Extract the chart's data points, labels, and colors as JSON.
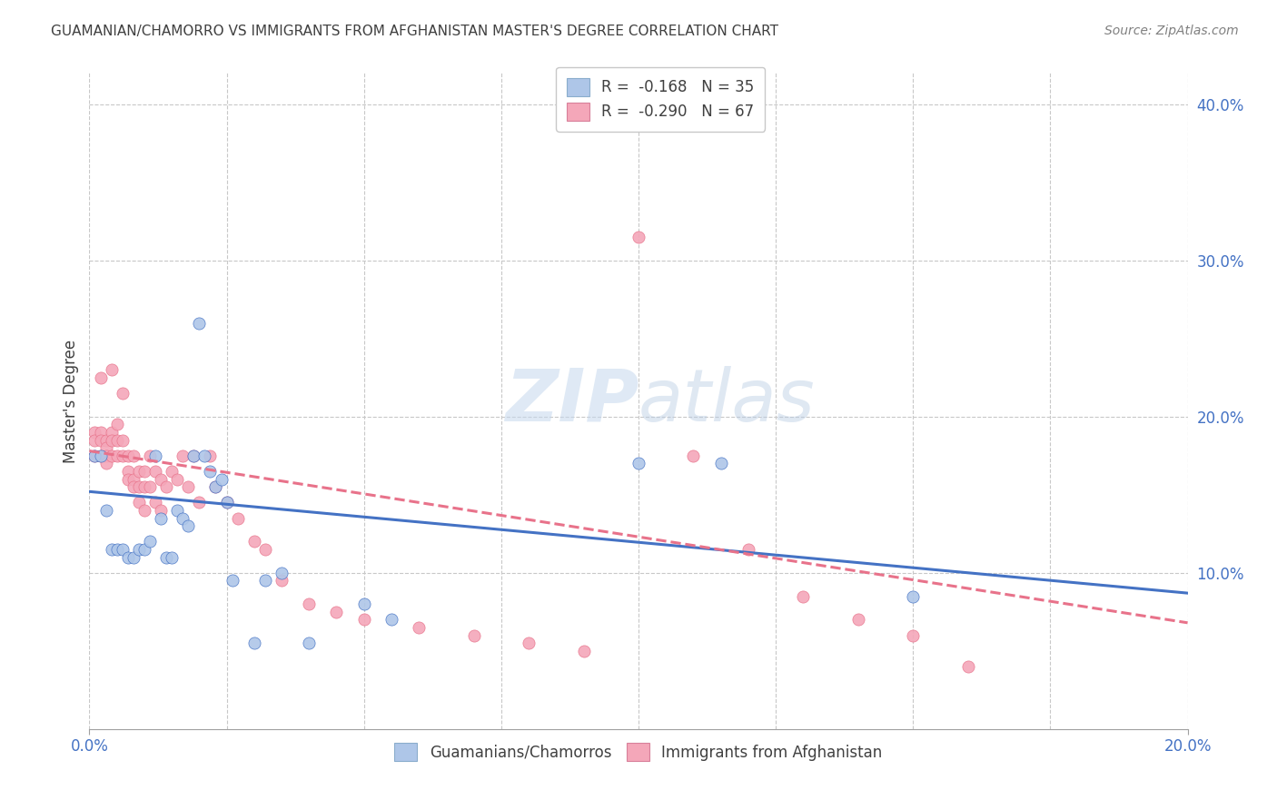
{
  "title": "GUAMANIAN/CHAMORRO VS IMMIGRANTS FROM AFGHANISTAN MASTER'S DEGREE CORRELATION CHART",
  "source": "Source: ZipAtlas.com",
  "ylabel": "Master's Degree",
  "right_yticks": [
    "40.0%",
    "30.0%",
    "20.0%",
    "10.0%"
  ],
  "right_ytick_vals": [
    0.4,
    0.3,
    0.2,
    0.1
  ],
  "legend_blue_label": "R =  -0.168   N = 35",
  "legend_pink_label": "R =  -0.290   N = 67",
  "legend_group1": "Guamanians/Chamorros",
  "legend_group2": "Immigrants from Afghanistan",
  "blue_color": "#aec6e8",
  "pink_color": "#f4a7b9",
  "blue_line_color": "#4472c4",
  "pink_line_color": "#e8728a",
  "title_color": "#404040",
  "source_color": "#808080",
  "axis_label_color": "#4472c4",
  "background_color": "#ffffff",
  "grid_color": "#c8c8c8",
  "blue_points_x": [
    0.001,
    0.002,
    0.003,
    0.004,
    0.005,
    0.006,
    0.007,
    0.008,
    0.009,
    0.01,
    0.011,
    0.012,
    0.013,
    0.014,
    0.015,
    0.016,
    0.017,
    0.018,
    0.019,
    0.02,
    0.021,
    0.022,
    0.023,
    0.024,
    0.025,
    0.026,
    0.03,
    0.032,
    0.035,
    0.04,
    0.05,
    0.055,
    0.1,
    0.115,
    0.15
  ],
  "blue_points_y": [
    0.175,
    0.175,
    0.14,
    0.115,
    0.115,
    0.115,
    0.11,
    0.11,
    0.115,
    0.115,
    0.12,
    0.175,
    0.135,
    0.11,
    0.11,
    0.14,
    0.135,
    0.13,
    0.175,
    0.26,
    0.175,
    0.165,
    0.155,
    0.16,
    0.145,
    0.095,
    0.055,
    0.095,
    0.1,
    0.055,
    0.08,
    0.07,
    0.17,
    0.17,
    0.085
  ],
  "pink_points_x": [
    0.001,
    0.001,
    0.001,
    0.002,
    0.002,
    0.002,
    0.002,
    0.003,
    0.003,
    0.003,
    0.003,
    0.004,
    0.004,
    0.004,
    0.004,
    0.005,
    0.005,
    0.005,
    0.006,
    0.006,
    0.006,
    0.007,
    0.007,
    0.007,
    0.008,
    0.008,
    0.008,
    0.009,
    0.009,
    0.009,
    0.01,
    0.01,
    0.01,
    0.011,
    0.011,
    0.012,
    0.012,
    0.013,
    0.013,
    0.014,
    0.015,
    0.016,
    0.017,
    0.018,
    0.019,
    0.02,
    0.022,
    0.023,
    0.025,
    0.027,
    0.03,
    0.032,
    0.035,
    0.04,
    0.045,
    0.05,
    0.06,
    0.07,
    0.08,
    0.09,
    0.1,
    0.11,
    0.12,
    0.13,
    0.14,
    0.15,
    0.16
  ],
  "pink_points_y": [
    0.19,
    0.185,
    0.175,
    0.225,
    0.19,
    0.185,
    0.175,
    0.185,
    0.18,
    0.175,
    0.17,
    0.23,
    0.19,
    0.185,
    0.175,
    0.195,
    0.185,
    0.175,
    0.215,
    0.185,
    0.175,
    0.175,
    0.165,
    0.16,
    0.175,
    0.16,
    0.155,
    0.165,
    0.155,
    0.145,
    0.165,
    0.155,
    0.14,
    0.175,
    0.155,
    0.165,
    0.145,
    0.16,
    0.14,
    0.155,
    0.165,
    0.16,
    0.175,
    0.155,
    0.175,
    0.145,
    0.175,
    0.155,
    0.145,
    0.135,
    0.12,
    0.115,
    0.095,
    0.08,
    0.075,
    0.07,
    0.065,
    0.06,
    0.055,
    0.05,
    0.315,
    0.175,
    0.115,
    0.085,
    0.07,
    0.06,
    0.04
  ],
  "blue_line_x": [
    0.0,
    0.2
  ],
  "blue_line_y_start": 0.152,
  "blue_line_y_end": 0.087,
  "pink_line_x": [
    0.0,
    0.2
  ],
  "pink_line_y_start": 0.178,
  "pink_line_y_end": 0.068,
  "xlim": [
    0.0,
    0.2
  ],
  "ylim": [
    0.0,
    0.42
  ],
  "xtick_positions": [
    0.0,
    0.025,
    0.05,
    0.075,
    0.1,
    0.125,
    0.15,
    0.175,
    0.2
  ]
}
